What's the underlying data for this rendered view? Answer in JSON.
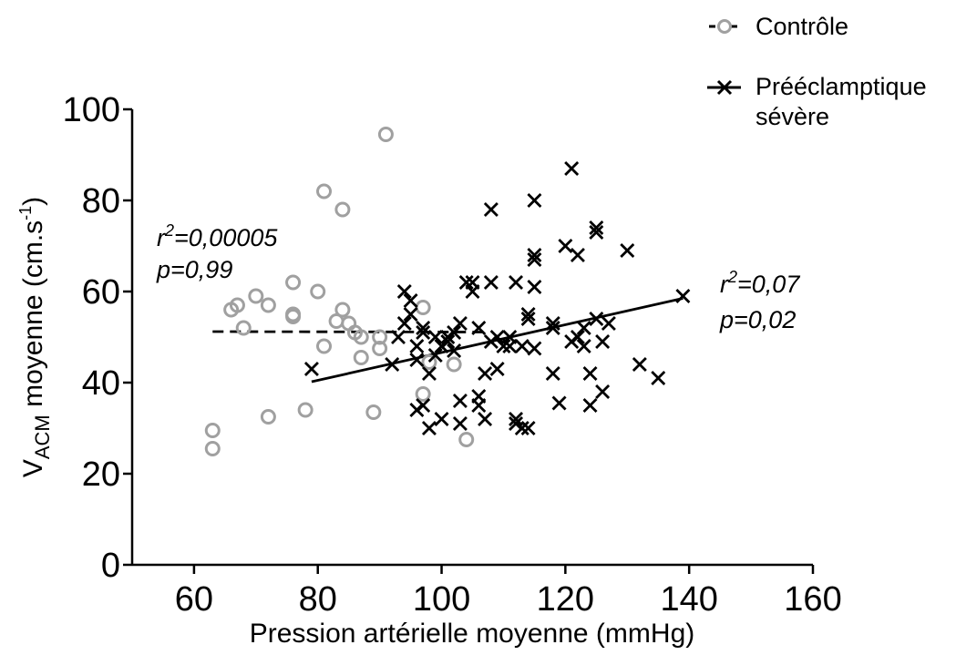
{
  "chart_data": {
    "type": "scatter",
    "xlabel": "Pression artérielle moyenne (mmHg)",
    "ylabel": {
      "prefix": "V",
      "subscript": "ACM",
      "text": " moyenne (cm.s",
      "superscript": "-1",
      "suffix": ")"
    },
    "xlim": [
      50,
      160
    ],
    "ylim": [
      0,
      100
    ],
    "x_ticks": [
      60,
      80,
      100,
      120,
      140,
      160
    ],
    "y_ticks": [
      0,
      20,
      40,
      60,
      80,
      100
    ],
    "grid": false,
    "legend_position": "top-right",
    "series": [
      {
        "name": "Contrôle",
        "marker": "circle",
        "color": "#a0a0a0",
        "line_style": "dashed",
        "points": [
          [
            63,
            29.5
          ],
          [
            63,
            25.5
          ],
          [
            66,
            56
          ],
          [
            67,
            57
          ],
          [
            68,
            52
          ],
          [
            70,
            59
          ],
          [
            72,
            57
          ],
          [
            72,
            32.5
          ],
          [
            76,
            62
          ],
          [
            76,
            55
          ],
          [
            76,
            54.5
          ],
          [
            78,
            34
          ],
          [
            80,
            60
          ],
          [
            81,
            48
          ],
          [
            81,
            82
          ],
          [
            83,
            53.5
          ],
          [
            84,
            56
          ],
          [
            84,
            78
          ],
          [
            85,
            53
          ],
          [
            86,
            51
          ],
          [
            87,
            50
          ],
          [
            87,
            45.5
          ],
          [
            89,
            33.5
          ],
          [
            90,
            50
          ],
          [
            90,
            47.5
          ],
          [
            91,
            94.5
          ],
          [
            97,
            56.5
          ],
          [
            97,
            37.5
          ],
          [
            98,
            44.5
          ],
          [
            102,
            44
          ],
          [
            104,
            27.5
          ]
        ],
        "fit": {
          "x": [
            63,
            107
          ],
          "y": [
            51.2,
            51.1
          ]
        },
        "stats": {
          "r2_label": "r",
          "r2_sup": "2",
          "r2_value": "=0,00005",
          "p_text": "p=0,99"
        }
      },
      {
        "name": "Prééclamptique sévère",
        "marker": "x",
        "color": "#000000",
        "line_style": "solid",
        "points": [
          [
            79,
            43
          ],
          [
            92,
            44
          ],
          [
            93,
            50
          ],
          [
            94,
            60
          ],
          [
            94,
            53
          ],
          [
            95,
            58
          ],
          [
            95,
            55
          ],
          [
            96,
            48
          ],
          [
            96,
            45
          ],
          [
            96,
            34
          ],
          [
            97,
            35
          ],
          [
            97,
            52
          ],
          [
            97,
            51
          ],
          [
            98,
            42
          ],
          [
            98,
            30
          ],
          [
            99,
            50
          ],
          [
            99,
            46
          ],
          [
            100,
            48
          ],
          [
            100,
            32
          ],
          [
            101,
            50
          ],
          [
            101,
            49
          ],
          [
            102,
            47
          ],
          [
            102,
            51
          ],
          [
            103,
            53
          ],
          [
            103,
            36
          ],
          [
            103,
            31
          ],
          [
            104,
            62
          ],
          [
            105,
            60
          ],
          [
            105,
            62
          ],
          [
            106,
            52
          ],
          [
            106,
            37
          ],
          [
            106,
            35
          ],
          [
            107,
            42
          ],
          [
            107,
            32
          ],
          [
            108,
            49
          ],
          [
            108,
            78
          ],
          [
            108,
            62
          ],
          [
            109,
            43
          ],
          [
            109,
            50
          ],
          [
            110,
            48
          ],
          [
            111,
            48
          ],
          [
            111,
            50
          ],
          [
            112,
            62
          ],
          [
            112,
            32
          ],
          [
            112,
            31
          ],
          [
            113,
            30
          ],
          [
            113,
            48
          ],
          [
            114,
            55
          ],
          [
            114,
            54
          ],
          [
            114,
            30
          ],
          [
            115,
            68
          ],
          [
            115,
            67
          ],
          [
            115,
            61
          ],
          [
            115,
            80
          ],
          [
            115,
            47.5
          ],
          [
            118,
            53
          ],
          [
            118,
            52
          ],
          [
            118,
            42
          ],
          [
            119,
            35.5
          ],
          [
            120,
            70
          ],
          [
            121,
            87
          ],
          [
            121,
            49
          ],
          [
            122,
            50
          ],
          [
            122,
            68
          ],
          [
            123,
            48
          ],
          [
            123,
            52
          ],
          [
            124,
            42
          ],
          [
            124,
            35
          ],
          [
            125,
            74
          ],
          [
            125,
            73
          ],
          [
            125,
            54
          ],
          [
            126,
            38
          ],
          [
            126,
            49
          ],
          [
            127,
            53
          ],
          [
            130,
            69
          ],
          [
            132,
            44
          ],
          [
            135,
            41
          ],
          [
            139,
            59
          ]
        ],
        "fit": {
          "x": [
            79,
            139
          ],
          "y": [
            40.2,
            58.5
          ]
        },
        "stats": {
          "r2_label": "r",
          "r2_sup": "2",
          "r2_value": "=0,07",
          "p_text": "p=0,02"
        }
      }
    ]
  }
}
